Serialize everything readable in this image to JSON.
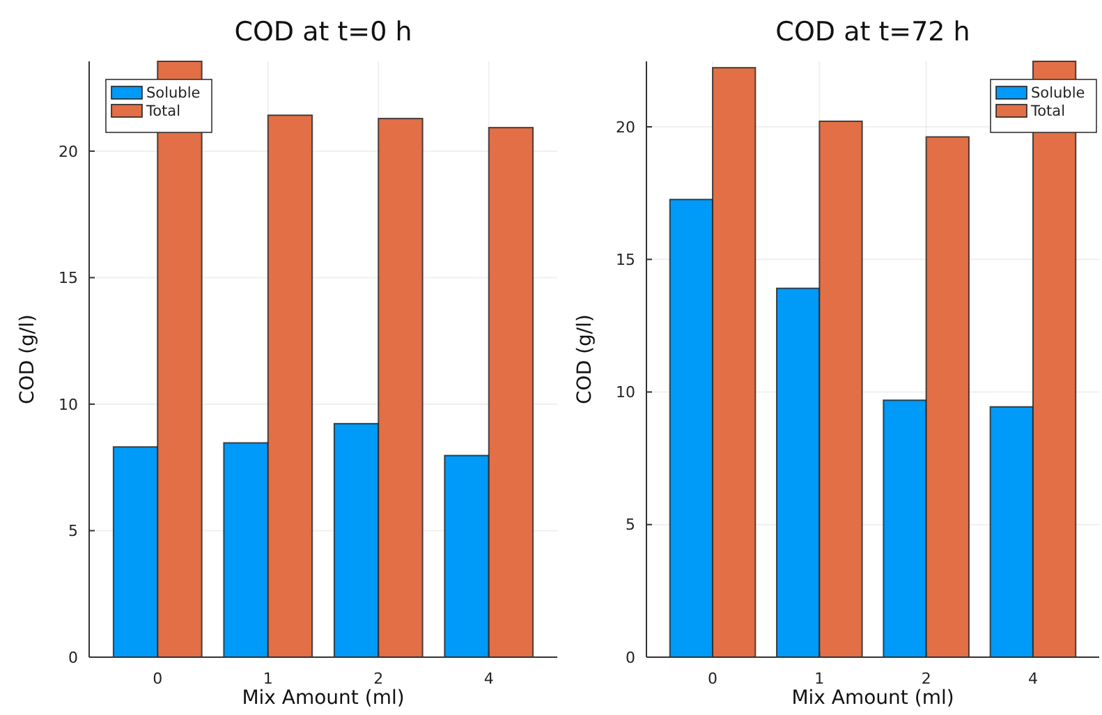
{
  "chart_data": [
    {
      "type": "bar",
      "title": "COD at t=0 h",
      "xlabel": "Mix Amount (ml)",
      "ylabel": "COD (g/l)",
      "categories": [
        "0",
        "1",
        "2",
        "4"
      ],
      "series": [
        {
          "name": "Soluble",
          "color": "#009af9",
          "values": [
            8.31,
            8.47,
            9.23,
            7.97
          ]
        },
        {
          "name": "Total",
          "color": "#e26f46",
          "values": [
            23.55,
            21.42,
            21.29,
            20.93
          ]
        }
      ],
      "ylim": [
        0,
        23.55
      ],
      "yticks": [
        0,
        5,
        10,
        15,
        20
      ],
      "grid": true,
      "legend": "top left"
    },
    {
      "type": "bar",
      "title": "COD at t=72 h",
      "xlabel": "Mix Amount (ml)",
      "ylabel": "COD (g/l)",
      "categories": [
        "0",
        "1",
        "2",
        "4"
      ],
      "series": [
        {
          "name": "Soluble",
          "color": "#009af9",
          "values": [
            17.26,
            13.91,
            9.69,
            9.44
          ]
        },
        {
          "name": "Total",
          "color": "#e26f46",
          "values": [
            22.23,
            20.21,
            19.62,
            22.47
          ]
        }
      ],
      "ylim": [
        0,
        22.47
      ],
      "yticks": [
        0,
        5,
        10,
        15,
        20
      ],
      "grid": true,
      "legend": "top right"
    }
  ]
}
